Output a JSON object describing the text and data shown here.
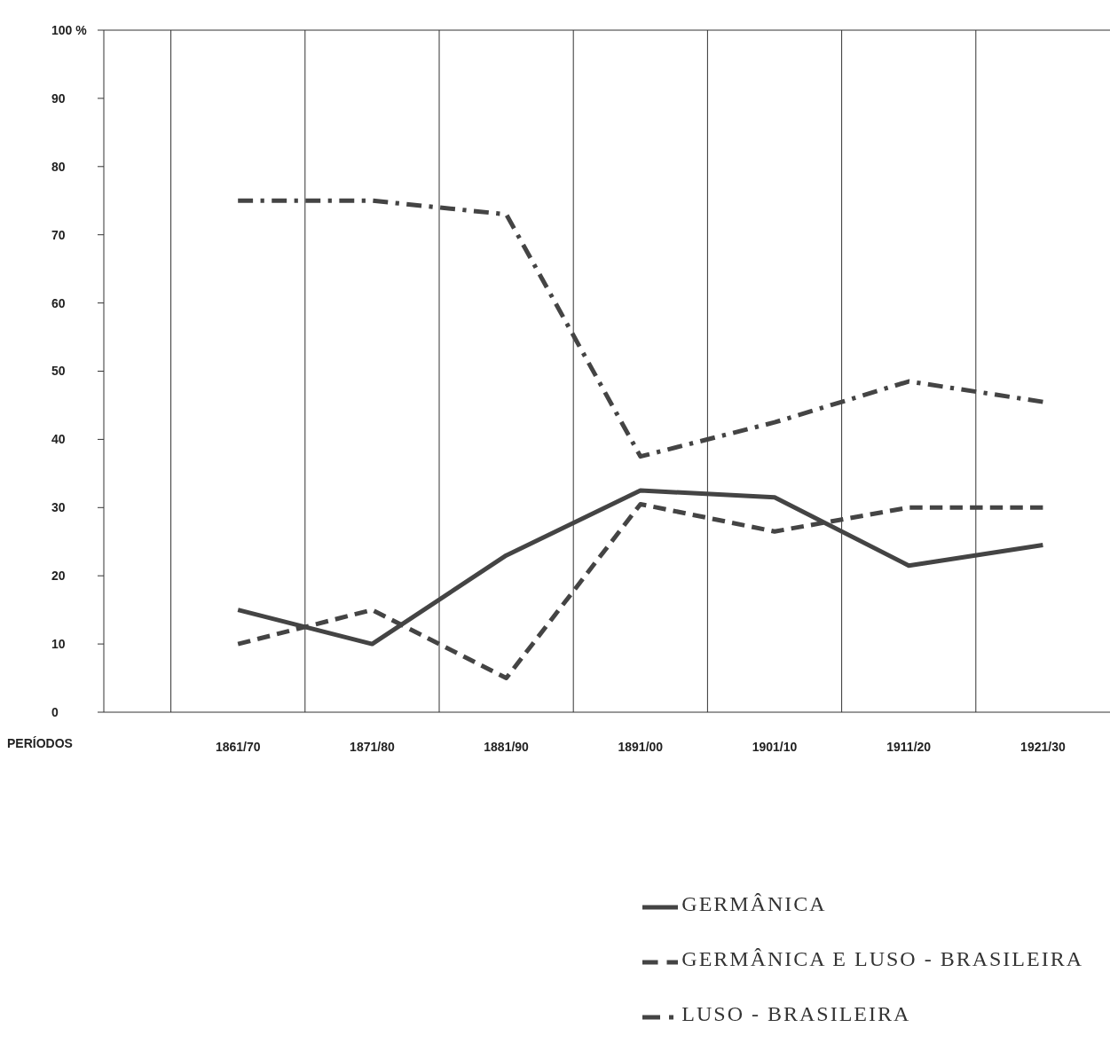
{
  "chart_data": {
    "type": "line",
    "xlabel": "PERÍODOS",
    "categories": [
      "1861/70",
      "1871/80",
      "1881/90",
      "1891/00",
      "1901/10",
      "1911/20",
      "1921/30"
    ],
    "series": [
      {
        "name": "GERMÂNICA",
        "color": "#444444",
        "line_style": "solid",
        "values": [
          15,
          10,
          23,
          32.5,
          31.5,
          21.5,
          24.5
        ]
      },
      {
        "name": "GERMÂNICA E LUSO - BRASILEIRA",
        "color": "#444444",
        "line_style": "dashed",
        "values": [
          10,
          15,
          5,
          30.5,
          26.5,
          30,
          30
        ]
      },
      {
        "name": "LUSO - BRASILEIRA",
        "color": "#444444",
        "line_style": "dashdot",
        "values": [
          75,
          75,
          73,
          37.5,
          42.5,
          48.5,
          45.5
        ]
      }
    ],
    "ylim": [
      0,
      100
    ],
    "yticks": [
      0,
      10,
      20,
      30,
      40,
      50,
      60,
      70,
      80,
      90,
      {
        "value": 100,
        "label": "100 %"
      }
    ],
    "grid": "x",
    "legend": "bottom right",
    "marker": "none"
  }
}
